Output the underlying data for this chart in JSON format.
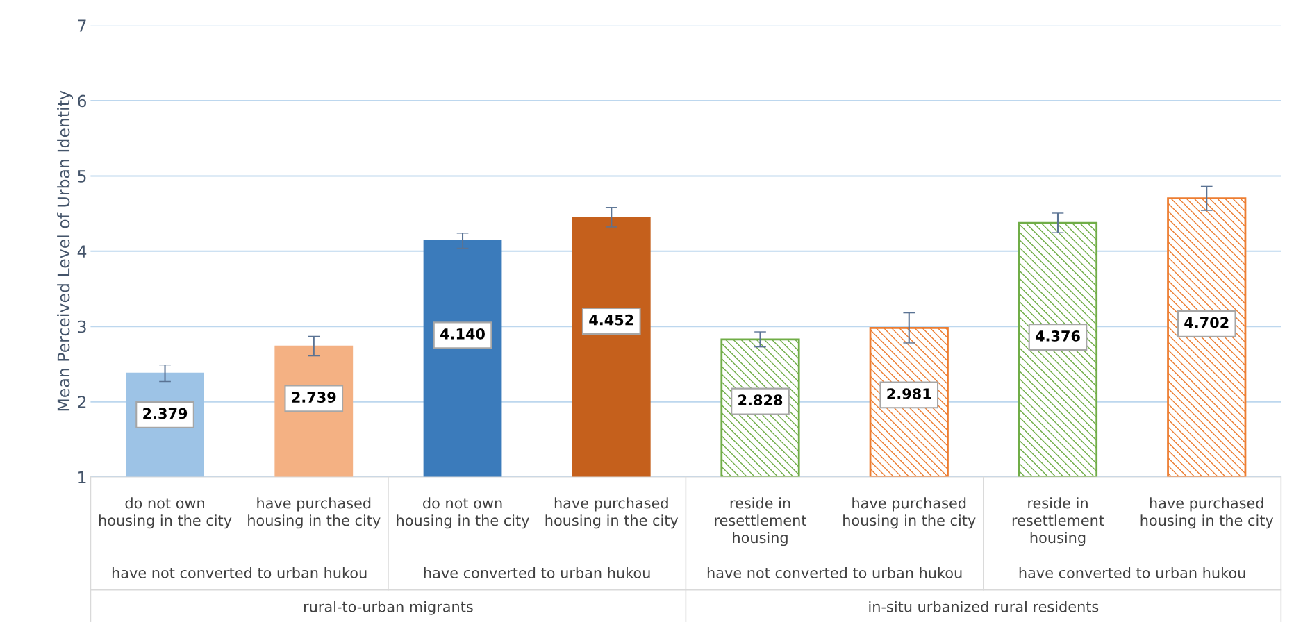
{
  "chart_data": {
    "type": "bar",
    "ylabel": "Mean Perceived Level of Urban Identity",
    "categories": [
      "do not own\nhousing in the city",
      "have purchased\nhousing in the city",
      "do not own\nhousing in the city",
      "have purchased\nhousing in the city",
      "reside in\nresettlement\nhousing",
      "have purchased\nhousing in the city",
      "reside in\nresettlement\nhousing",
      "have purchased\nhousing in the city"
    ],
    "series": [
      {
        "values": [
          2.379,
          2.739,
          4.14,
          4.452,
          null,
          null,
          null,
          null
        ],
        "colors": [
          "#9dc3e6",
          "#f4b183",
          "#3b7bbb",
          "#c5601c",
          null,
          null,
          null,
          null
        ],
        "errors": [
          0.11,
          0.13,
          0.1,
          0.13,
          null,
          null,
          null,
          null
        ],
        "value_labels": [
          "2.379",
          "2.739",
          "4.140",
          "4.452",
          null,
          null,
          null,
          null
        ]
      },
      {
        "values": [
          null,
          null,
          null,
          null,
          2.828,
          2.981,
          4.376,
          4.702
        ],
        "colors": [
          null,
          null,
          null,
          null,
          "#70ad47",
          "#ed7d31",
          "#70ad47",
          "#ed7d31"
        ],
        "errors": [
          null,
          null,
          null,
          null,
          0.1,
          0.2,
          0.13,
          0.16
        ],
        "value_labels": [
          null,
          null,
          null,
          null,
          "2.828",
          "2.981",
          "4.376",
          "4.702"
        ]
      }
    ],
    "ylim": [
      1,
      7
    ],
    "yticks": [
      1,
      2,
      3,
      4,
      5,
      6,
      7
    ],
    "grid": "y",
    "annotations": [
      "have not converted to urban hukou",
      "have converted to urban hukou",
      "have not converted to urban hukou",
      "have converted to urban hukou",
      "rural-to-urban migrants",
      "in-situ urbanized rural residents"
    ]
  }
}
